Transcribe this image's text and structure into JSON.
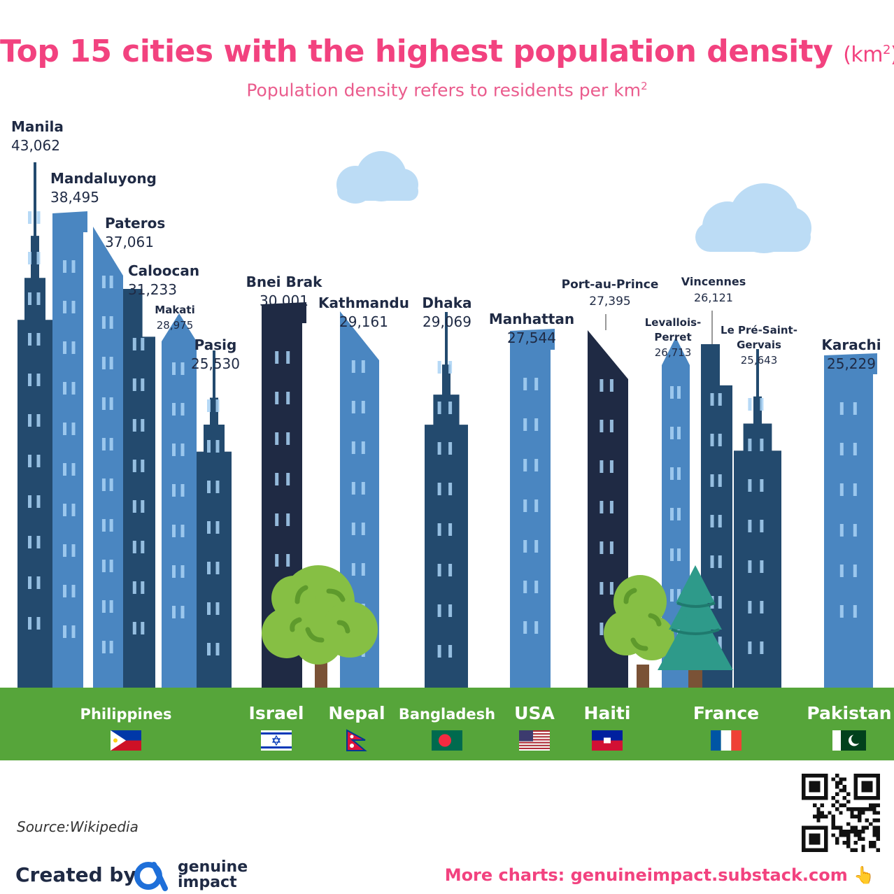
{
  "header": {
    "title": "Top 15 cities with the highest population density",
    "title_unit": "(km",
    "title_unit_sup": "2",
    "title_unit_close": ")",
    "subtitle": "Population density refers to residents per km",
    "subtitle_sup": "2"
  },
  "chart_data": {
    "type": "bar",
    "title": "Top 15 cities with the highest population density (km2)",
    "subtitle": "Population density refers to residents per km2",
    "ylabel": "Residents per km2",
    "xlabel": "",
    "categories": [
      "Manila",
      "Mandaluyong",
      "Pateros",
      "Caloocan",
      "Makati",
      "Pasig",
      "Bnei Brak",
      "Kathmandu",
      "Dhaka",
      "Manhattan",
      "Port-au-Prince",
      "Levallois-Perret",
      "Vincennes",
      "Le Pré-Saint-Gervais",
      "Karachi"
    ],
    "values": [
      43062,
      38495,
      37061,
      31233,
      28975,
      25530,
      30001,
      29161,
      29069,
      27544,
      27395,
      26713,
      26121,
      25643,
      25229
    ],
    "value_labels": [
      "43,062",
      "38,495",
      "37,061",
      "31,233",
      "28,975",
      "25,530",
      "30,001",
      "29,161",
      "29,069",
      "27,544",
      "27,395",
      "26,713",
      "26,121",
      "25,643",
      "25,229"
    ],
    "countries": [
      {
        "name": "Philippines",
        "cities": [
          "Manila",
          "Mandaluyong",
          "Pateros",
          "Caloocan",
          "Makati",
          "Pasig"
        ]
      },
      {
        "name": "Israel",
        "cities": [
          "Bnei Brak"
        ]
      },
      {
        "name": "Nepal",
        "cities": [
          "Kathmandu"
        ]
      },
      {
        "name": "Bangladesh",
        "cities": [
          "Dhaka"
        ]
      },
      {
        "name": "USA",
        "cities": [
          "Manhattan"
        ]
      },
      {
        "name": "Haiti",
        "cities": [
          "Port-au-Prince"
        ]
      },
      {
        "name": "France",
        "cities": [
          "Levallois-Perret",
          "Vincennes",
          "Le Pré-Saint-Gervais"
        ]
      },
      {
        "name": "Pakistan",
        "cities": [
          "Karachi"
        ]
      }
    ]
  },
  "colors": {
    "title": "#f2427f",
    "dark": "#1f2a44",
    "navy": "#234a6e",
    "mid": "#4a86c1",
    "light": "#a9d2f5",
    "ground": "#56a53a",
    "cloud": "#bcdcf5"
  },
  "footer": {
    "source": "Source:Wikipedia",
    "created_by": "Created by",
    "brand_line1": "genuine",
    "brand_line2": "impact",
    "more_charts": "More charts: genuineimpact.substack.com 👆"
  }
}
